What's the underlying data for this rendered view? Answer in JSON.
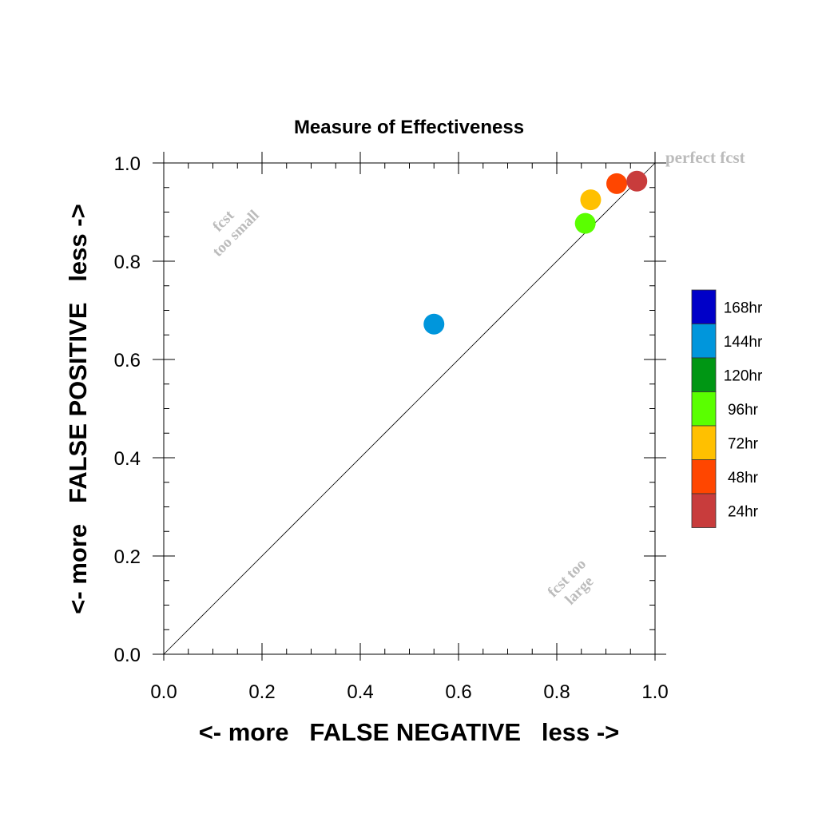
{
  "chart_data": {
    "type": "scatter",
    "title": "Measure of Effectiveness",
    "xlabel": "<- more   FALSE NEGATIVE   less ->",
    "ylabel": "<- more   FALSE POSITIVE   less ->",
    "xlim": [
      0.0,
      1.0
    ],
    "ylim": [
      0.0,
      1.0
    ],
    "x_ticks": [
      "0.0",
      "0.2",
      "0.4",
      "0.6",
      "0.8",
      "1.0"
    ],
    "y_ticks": [
      "0.0",
      "0.2",
      "0.4",
      "0.6",
      "0.8",
      "1.0"
    ],
    "grid": false,
    "diagonal_line": true,
    "annotations": {
      "perfect": "perfect fcst",
      "too_small_line1": "fcst",
      "too_small_line2": "too small",
      "too_large_line1": "fcst too",
      "too_large_line2": "large"
    },
    "legend_position": "right",
    "legend": [
      {
        "label": "168hr",
        "color": "#0000c8"
      },
      {
        "label": "144hr",
        "color": "#0096dc"
      },
      {
        "label": "120hr",
        "color": "#009614"
      },
      {
        "label": "96hr",
        "color": "#5aff00"
      },
      {
        "label": "72hr",
        "color": "#ffc000"
      },
      {
        "label": "48hr",
        "color": "#ff4600"
      },
      {
        "label": "24hr",
        "color": "#c83c3c"
      }
    ],
    "points": [
      {
        "label": "144hr",
        "x": 0.55,
        "y": 0.672,
        "color": "#0096dc"
      },
      {
        "label": "96hr",
        "x": 0.858,
        "y": 0.877,
        "color": "#5aff00"
      },
      {
        "label": "72hr",
        "x": 0.869,
        "y": 0.925,
        "color": "#ffc000"
      },
      {
        "label": "48hr",
        "x": 0.922,
        "y": 0.958,
        "color": "#ff4600"
      },
      {
        "label": "24hr",
        "x": 0.963,
        "y": 0.963,
        "color": "#c83c3c"
      }
    ]
  }
}
